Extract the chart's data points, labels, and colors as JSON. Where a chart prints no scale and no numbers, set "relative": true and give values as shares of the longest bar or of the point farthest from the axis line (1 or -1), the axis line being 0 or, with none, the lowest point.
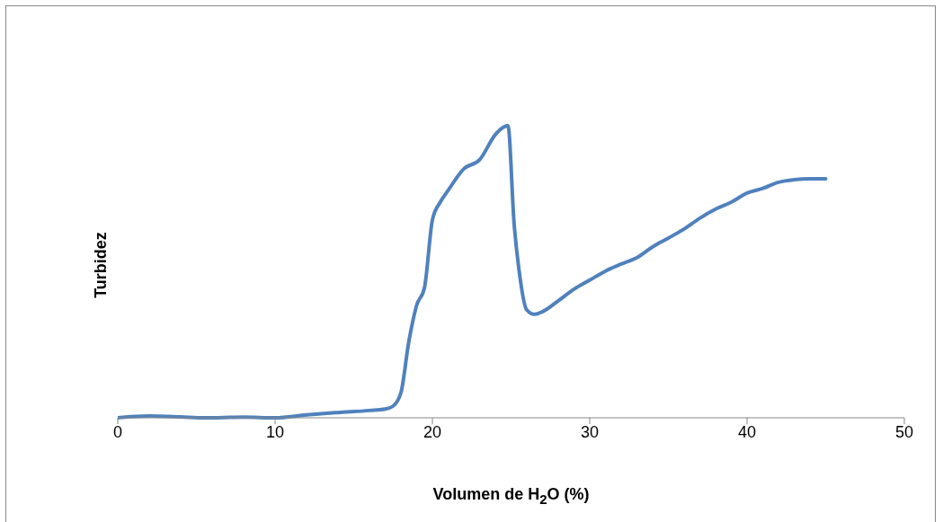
{
  "chart_data": {
    "type": "line",
    "xlabel": "Volumen de H$_{2}$O (%)",
    "ylabel": "Turbidez",
    "relative": true,
    "xlim": [
      0,
      50
    ],
    "xticks": [
      0,
      10,
      20,
      30,
      40,
      50
    ],
    "x": [
      0,
      2,
      4,
      5.5,
      8,
      10,
      12,
      14,
      16,
      17,
      17.5,
      18,
      18.5,
      19,
      19.5,
      20,
      20.5,
      21,
      22,
      23,
      24,
      24.5,
      24.8,
      25.2,
      25.5,
      26,
      26.5,
      27,
      28,
      29,
      30,
      31,
      32,
      33,
      34,
      35,
      36,
      37,
      38,
      39,
      40,
      41,
      42,
      43,
      44,
      45
    ],
    "series": [
      {
        "color": "#4f81bd",
        "values": [
          0,
          0.006,
          0.003,
          0,
          0.002,
          0,
          0.01,
          0.018,
          0.025,
          0.03,
          0.04,
          0.086,
          0.26,
          0.385,
          0.446,
          0.677,
          0.738,
          0.778,
          0.852,
          0.883,
          0.969,
          0.994,
          1,
          0.66,
          0.508,
          0.369,
          0.354,
          0.363,
          0.4,
          0.44,
          0.471,
          0.502,
          0.526,
          0.548,
          0.585,
          0.615,
          0.646,
          0.683,
          0.714,
          0.738,
          0.769,
          0.785,
          0.806,
          0.815,
          0.818,
          0.818
        ]
      }
    ]
  }
}
